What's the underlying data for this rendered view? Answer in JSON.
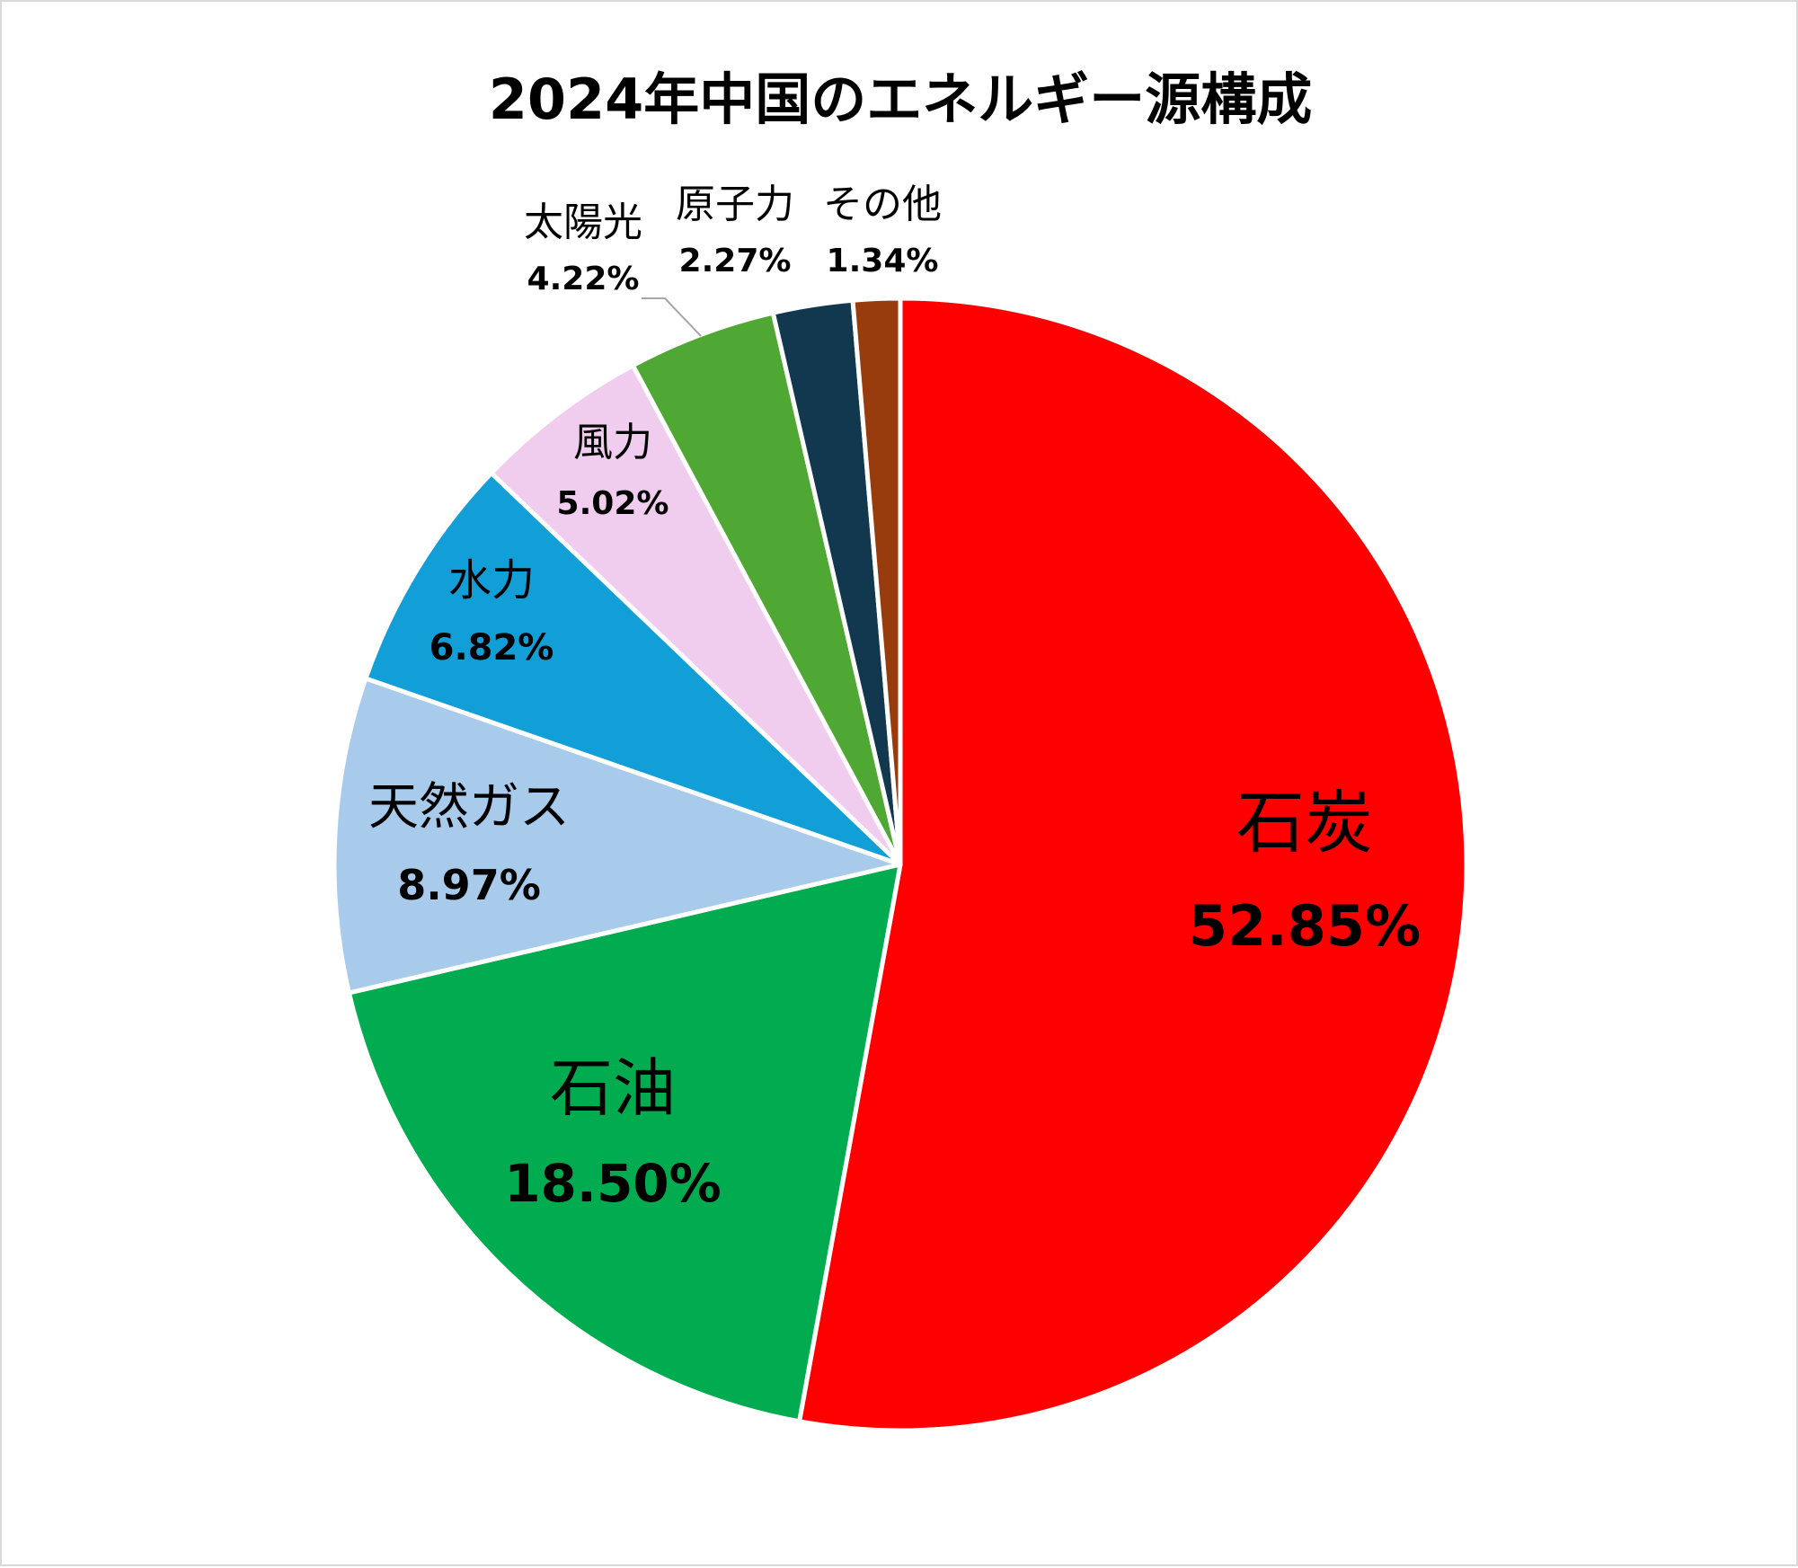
{
  "chart_data": {
    "type": "pie",
    "title": "2024年中国のエネルギー源構成",
    "slices": [
      {
        "label": "石炭",
        "value": 52.85,
        "value_text": "52.85%",
        "color": "#ff0000"
      },
      {
        "label": "石油",
        "value": 18.5,
        "value_text": "18.50%",
        "color": "#00ac4f"
      },
      {
        "label": "天然ガス",
        "value": 8.97,
        "value_text": "8.97%",
        "color": "#a8caeb"
      },
      {
        "label": "水力",
        "value": 6.82,
        "value_text": "6.82%",
        "color": "#129ed7"
      },
      {
        "label": "風力",
        "value": 5.02,
        "value_text": "5.02%",
        "color": "#f0cdee"
      },
      {
        "label": "太陽光",
        "value": 4.22,
        "value_text": "4.22%",
        "color": "#4fa834"
      },
      {
        "label": "原子力",
        "value": 2.27,
        "value_text": "2.27%",
        "color": "#12384f"
      },
      {
        "label": "その他",
        "value": 1.34,
        "value_text": "1.34%",
        "color": "#983c0e"
      }
    ],
    "start_angle": "12 o'clock",
    "direction": "clockwise",
    "legend": "none",
    "data_labels": "category name and percentage"
  }
}
